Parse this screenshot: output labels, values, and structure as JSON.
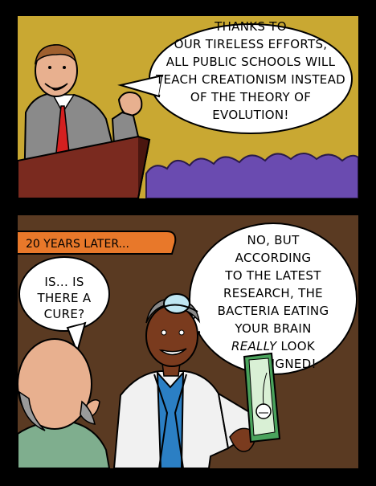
{
  "panel1": {
    "speech": [
      "THANKS TO",
      "OUR TIRELESS EFFORTS,",
      "ALL PUBLIC SCHOOLS WILL",
      "TEACH CREATIONISM INSTEAD",
      "OF THE THEORY OF",
      "EVOLUTION!"
    ]
  },
  "panel2": {
    "caption": "20 YEARS LATER...",
    "patient_speech": [
      "IS... IS",
      "THERE A",
      "CURE?"
    ],
    "doctor_speech": [
      "NO, BUT",
      "ACCORDING",
      "TO THE LATEST",
      "RESEARCH, THE",
      "BACTERIA EATING",
      "YOUR BRAIN"
    ],
    "doctor_speech_emphasis": "REALLY",
    "doctor_speech_after_emphasis": "LOOK",
    "doctor_speech_end": "DESIGNED!"
  },
  "colors": {
    "panel1_bg": "#c9a832",
    "crowd": "#6a4bb0",
    "podium": "#7a2a1f",
    "panel2_bg": "#5a3a22",
    "caption_bg": "#e8782a",
    "labcoat": "#f1f1f1",
    "shirt": "#2b7fc4",
    "skin_dark": "#7a3b1e",
    "skin_light": "#e8b08f",
    "patient_shirt": "#7fae8e",
    "folder": "#4aa35c"
  }
}
